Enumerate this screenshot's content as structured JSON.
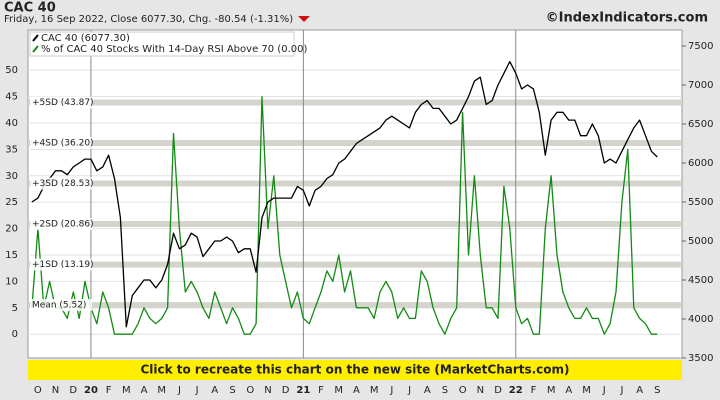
{
  "chart_data": {
    "type": "line",
    "title": "CAC 40",
    "subtitle": "Friday, 16 Sep 2022, Close 6077.30, Chg. -80.54 (-1.31%)",
    "source": "©IndexIndicators.com",
    "banner": "Click to recreate this chart on the new site (MarketCharts.com)",
    "categories": [
      null,
      "O",
      null,
      null,
      "N",
      null,
      null,
      "D",
      null,
      null,
      "20",
      null,
      null,
      "F",
      null,
      null,
      "M",
      null,
      null,
      "A",
      null,
      null,
      "M",
      null,
      null,
      "J",
      null,
      null,
      "J",
      null,
      null,
      "A",
      null,
      null,
      "S",
      null,
      null,
      "O",
      null,
      null,
      "N",
      null,
      null,
      "D",
      null,
      null,
      "21",
      null,
      null,
      "F",
      null,
      null,
      "M",
      null,
      null,
      "A",
      null,
      null,
      "M",
      null,
      null,
      "J",
      null,
      null,
      "J",
      null,
      null,
      "A",
      null,
      null,
      "S",
      null,
      null,
      "O",
      null,
      null,
      "N",
      null,
      null,
      "D",
      null,
      null,
      "22",
      null,
      null,
      "F",
      null,
      null,
      "M",
      null,
      null,
      "A",
      null,
      null,
      "M",
      null,
      null,
      "J",
      null,
      null,
      "J",
      null,
      null,
      "A",
      null,
      null,
      "S",
      null
    ],
    "year_categories": [
      "20",
      "21",
      "22"
    ],
    "series": [
      {
        "name": "CAC 40 (6077.30)",
        "color": "#000000",
        "axis": "y2",
        "values": [
          5500,
          5550,
          5700,
          5800,
          5900,
          5900,
          5850,
          5950,
          6000,
          6050,
          6050,
          5900,
          5950,
          6100,
          5800,
          5300,
          3900,
          4300,
          4400,
          4500,
          4500,
          4400,
          4500,
          4700,
          5100,
          4900,
          4950,
          5100,
          5050,
          4800,
          4900,
          5000,
          5000,
          5050,
          5000,
          4850,
          4900,
          4900,
          4600,
          5300,
          5500,
          5550,
          5550,
          5550,
          5550,
          5700,
          5650,
          5450,
          5650,
          5700,
          5800,
          5850,
          6000,
          6050,
          6150,
          6250,
          6300,
          6350,
          6400,
          6450,
          6550,
          6600,
          6550,
          6500,
          6450,
          6650,
          6750,
          6800,
          6700,
          6700,
          6600,
          6500,
          6550,
          6700,
          6850,
          7050,
          7100,
          6750,
          6800,
          7000,
          7150,
          7300,
          7150,
          6950,
          7000,
          6950,
          6650,
          6100,
          6550,
          6650,
          6650,
          6550,
          6550,
          6350,
          6350,
          6500,
          6350,
          6000,
          6050,
          6000,
          6150,
          6300,
          6450,
          6550,
          6350,
          6150,
          6077.3,
          null
        ]
      },
      {
        "name": "% of CAC 40 Stocks With 14-Day RSI Above 70 (0.00)",
        "color": "#138a13",
        "values": [
          5,
          20,
          5,
          10,
          5,
          5,
          3,
          8,
          3,
          10,
          5,
          2,
          8,
          5,
          0,
          0,
          0,
          0,
          2,
          5,
          3,
          2,
          3,
          5,
          38,
          20,
          8,
          10,
          8,
          5,
          3,
          8,
          5,
          2,
          5,
          3,
          0,
          0,
          2,
          45,
          20,
          30,
          15,
          10,
          5,
          8,
          3,
          2,
          5,
          8,
          12,
          10,
          15,
          8,
          12,
          5,
          5,
          5,
          3,
          8,
          10,
          8,
          3,
          5,
          3,
          3,
          12,
          10,
          5,
          2,
          0,
          3,
          5,
          42,
          15,
          30,
          15,
          5,
          5,
          3,
          28,
          20,
          5,
          2,
          3,
          0,
          0,
          20,
          30,
          15,
          8,
          5,
          3,
          3,
          5,
          3,
          3,
          0,
          2,
          8,
          25,
          35,
          5,
          3,
          2,
          0,
          0,
          null
        ]
      }
    ],
    "bands": [
      {
        "label": "+5SD (43.87)",
        "value": 43.87
      },
      {
        "label": "+4SD (36.20)",
        "value": 36.2
      },
      {
        "label": "+3SD (28.53)",
        "value": 28.53
      },
      {
        "label": "+2SD (20.86)",
        "value": 20.86
      },
      {
        "label": "+1SD (13.19)",
        "value": 13.19
      },
      {
        "label": "Mean (5.52)",
        "value": 5.52
      }
    ],
    "ylim": [
      -4.5,
      57.6
    ],
    "yticks": [
      0,
      5,
      10,
      15,
      20,
      25,
      30,
      35,
      40,
      45,
      50
    ],
    "y2lim": [
      3500,
      7705
    ],
    "y2ticks": [
      3500,
      4000,
      4500,
      5000,
      5500,
      6000,
      6500,
      7000,
      7500
    ],
    "grid": true
  }
}
